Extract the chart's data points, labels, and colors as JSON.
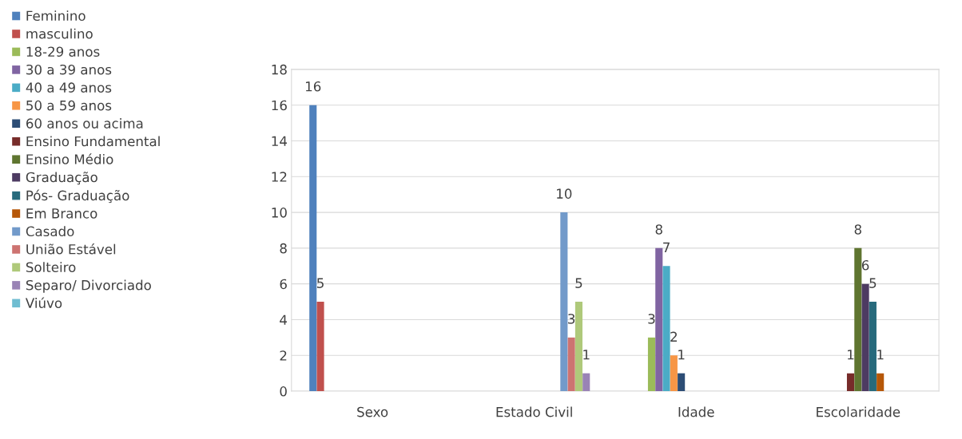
{
  "chart_data": {
    "type": "bar",
    "categories": [
      "Sexo",
      "Estado Civil",
      "Idade",
      "Escolaridade"
    ],
    "ylim": [
      0,
      18
    ],
    "yticks": [
      0,
      2,
      4,
      6,
      8,
      10,
      12,
      14,
      16,
      18
    ],
    "grid": "y",
    "legend": "left",
    "data_labels": true,
    "series": [
      {
        "name": "Feminino",
        "color": "#4f81bd",
        "values": [
          16,
          null,
          null,
          null
        ]
      },
      {
        "name": "masculino",
        "color": "#c0504d",
        "values": [
          5,
          null,
          null,
          null
        ]
      },
      {
        "name": "18-29 anos",
        "color": "#9bbb59",
        "values": [
          null,
          null,
          3,
          null
        ]
      },
      {
        "name": "30 a 39 anos",
        "color": "#8064a2",
        "values": [
          null,
          null,
          8,
          null
        ]
      },
      {
        "name": "40 a 49 anos",
        "color": "#4bacc6",
        "values": [
          null,
          null,
          7,
          null
        ]
      },
      {
        "name": "50 a 59 anos",
        "color": "#f79646",
        "values": [
          null,
          null,
          2,
          null
        ]
      },
      {
        "name": "60 anos ou acima",
        "color": "#2c4d75",
        "values": [
          null,
          null,
          1,
          null
        ]
      },
      {
        "name": "Ensino Fundamental",
        "color": "#772c2a",
        "values": [
          null,
          null,
          null,
          1
        ]
      },
      {
        "name": "Ensino Médio",
        "color": "#5f7530",
        "values": [
          null,
          null,
          null,
          8
        ]
      },
      {
        "name": "Graduação",
        "color": "#4d3b62",
        "values": [
          null,
          null,
          null,
          6
        ]
      },
      {
        "name": "Pós- Graduação",
        "color": "#276a7c",
        "values": [
          null,
          null,
          null,
          5
        ]
      },
      {
        "name": "Em Branco",
        "color": "#b65708",
        "values": [
          null,
          null,
          null,
          1
        ]
      },
      {
        "name": "Casado",
        "color": "#729aca",
        "values": [
          null,
          10,
          null,
          null
        ]
      },
      {
        "name": "União Estável",
        "color": "#cd7371",
        "values": [
          null,
          3,
          null,
          null
        ]
      },
      {
        "name": "Solteiro",
        "color": "#afc97a",
        "values": [
          null,
          5,
          null,
          null
        ]
      },
      {
        "name": "Separo/ Divorciado",
        "color": "#9983b5",
        "values": [
          null,
          1,
          null,
          null
        ]
      },
      {
        "name": "Viúvo",
        "color": "#6fbdd1",
        "values": [
          null,
          null,
          null,
          null
        ]
      }
    ]
  }
}
